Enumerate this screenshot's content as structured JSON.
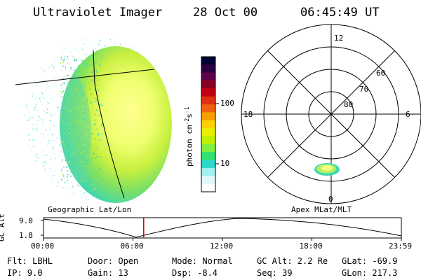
{
  "header": {
    "instrument": "Ultraviolet Imager",
    "date": "28 Oct 00",
    "time": "06:45:49 UT"
  },
  "left_panel": {
    "label": "Geographic Lat/Lon"
  },
  "right_panel": {
    "label": "Apex MLat/MLT",
    "mlt_labels": {
      "top": "12",
      "left": "18",
      "right": "6",
      "bottom": "0"
    },
    "lat_labels": [
      "60",
      "70",
      "80"
    ]
  },
  "colorbar": {
    "unit_main": "photon cm",
    "unit_exp1": "-2",
    "unit_s": "s",
    "unit_exp2": "-1",
    "tick_100": "100",
    "tick_10": "10",
    "colors": [
      "#000033",
      "#2a0040",
      "#60004a",
      "#8a0020",
      "#c00010",
      "#e03010",
      "#f06010",
      "#f8a000",
      "#ffd000",
      "#e8f000",
      "#c0f000",
      "#80f040",
      "#30e070",
      "#30d8c8",
      "#a0f0f0",
      "#e0f8f8",
      "#ffffff"
    ]
  },
  "timeline": {
    "ylabel": "GC Alt",
    "ymax": "9.0",
    "ymin": "1.8",
    "ticks": [
      "00:00",
      "06:00",
      "12:00",
      "18:00",
      "23:59"
    ],
    "current_fraction": 0.28,
    "marker_color": "#cc0000"
  },
  "info": {
    "flt": "Flt: LBHL",
    "ip": "IP:  9.0",
    "door": "Door: Open",
    "gain": "Gain: 13",
    "mode": "Mode: Normal",
    "dsp": "Dsp:   -8.4",
    "gcalt": "GC Alt: 2.2 Re",
    "seq": "Seq: 39",
    "glat": "GLat: -69.9",
    "glon": "GLon: 217.3"
  }
}
